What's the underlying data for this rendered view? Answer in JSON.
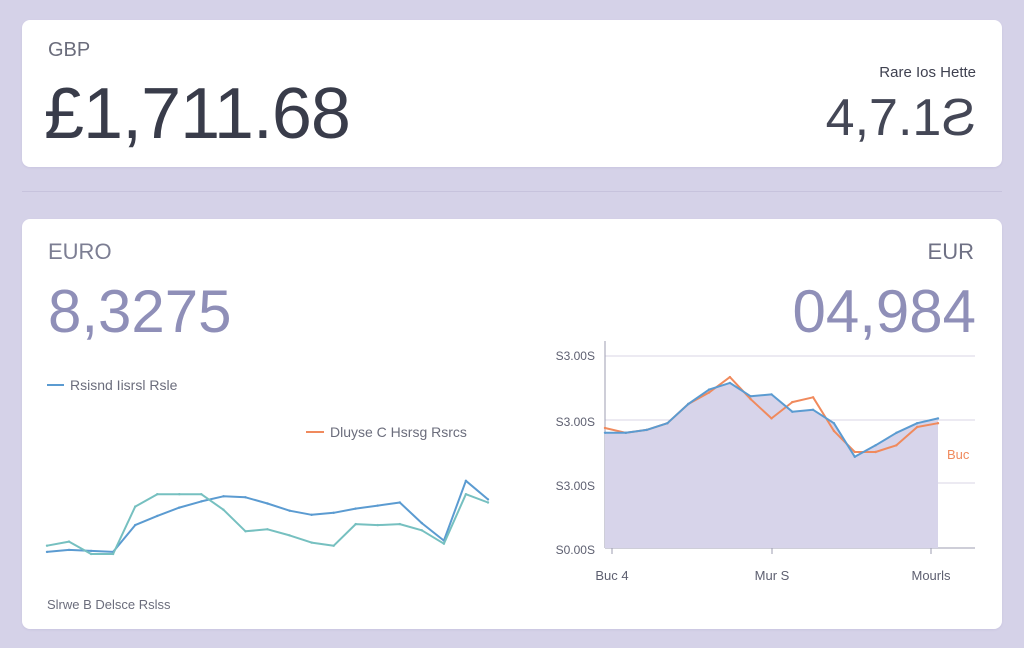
{
  "top_card": {
    "currency_label": "GBP",
    "currency_value": "£1,711.68",
    "rate_label": "Rare Ios Hette",
    "rate_value": "4,7.1Ƨ"
  },
  "bottom_card": {
    "left_label": "EURO",
    "left_value": "8,3275",
    "right_label": "EUR",
    "right_value": "04,984"
  },
  "colors": {
    "page_background": "#d5d2e8",
    "card": "#ffffff",
    "blue_series": "#5b9bd1",
    "teal_series": "#76c0c0",
    "orange_series": "#f08a5d",
    "area_fill": "#d7d4ea"
  },
  "chart_data": [
    {
      "type": "line",
      "legend_position": "top-left",
      "legend": [
        {
          "label": "Rsisnd Iisrsl Rsle",
          "color": "#5b9bd1"
        },
        {
          "label": "Dluyse C Hsrsg Rsrcs",
          "color": "#f08a5d"
        }
      ],
      "footer_label": "Slrwe B Delsce Rslss",
      "x": [
        0,
        1,
        2,
        3,
        4,
        5,
        6,
        7,
        8,
        9,
        10,
        11,
        12,
        13,
        14,
        15,
        16,
        17,
        18,
        19,
        20
      ],
      "series": [
        {
          "values": [
            0.97,
            0.95,
            0.96,
            0.97,
            0.71,
            0.62,
            0.54,
            0.48,
            0.43,
            0.44,
            0.5,
            0.57,
            0.61,
            0.59,
            0.55,
            0.52,
            0.49,
            0.69,
            0.86,
            0.28,
            0.46
          ]
        },
        {
          "values": [
            0.91,
            0.87,
            0.99,
            0.99,
            0.53,
            0.41,
            0.41,
            0.41,
            0.56,
            0.77,
            0.75,
            0.81,
            0.88,
            0.91,
            0.7,
            0.71,
            0.7,
            0.76,
            0.89,
            0.41,
            0.49
          ]
        }
      ],
      "ylim": [
        0,
        1
      ]
    },
    {
      "type": "area",
      "grid": true,
      "legend": [
        {
          "label": "Buc",
          "color": "#f08a5d"
        }
      ],
      "y_tick_labels": [
        "S3.00S",
        "S3.00S",
        "S3.00S",
        "S0.00S"
      ],
      "x_tick_labels": [
        "Buc 4",
        "Mur S",
        "Mourls"
      ],
      "x": [
        0,
        1,
        2,
        3,
        4,
        5,
        6,
        7,
        8,
        9,
        10,
        11,
        12,
        13,
        14,
        15,
        16
      ],
      "series": [
        {
          "values": [
            2.2,
            2.2,
            2.23,
            2.3,
            2.5,
            2.65,
            2.72,
            2.58,
            2.6,
            2.42,
            2.44,
            2.3,
            1.95,
            2.07,
            2.2,
            2.3,
            2.35
          ]
        },
        {
          "values": [
            2.25,
            2.2,
            2.23,
            2.3,
            2.5,
            2.62,
            2.78,
            2.55,
            2.35,
            2.52,
            2.57,
            2.22,
            2.0,
            2.0,
            2.07,
            2.26,
            2.3
          ]
        }
      ],
      "ylim": [
        1.0,
        3.0
      ]
    }
  ]
}
